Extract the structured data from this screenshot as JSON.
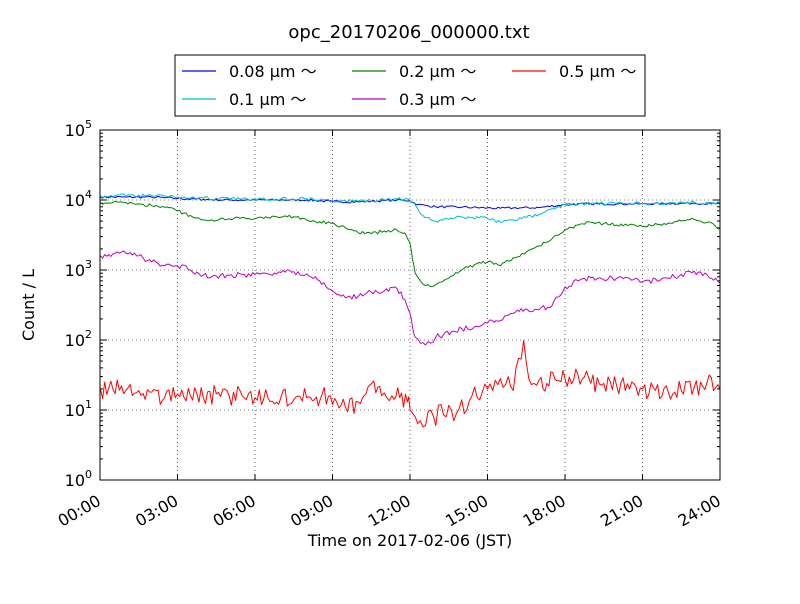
{
  "chart_data": {
    "type": "line",
    "title": "opc_20170206_000000.txt",
    "xlabel": "Time on 2017-02-06 (JST)",
    "ylabel": "Count / L",
    "yscale": "log",
    "ylim": [
      1,
      100000
    ],
    "xlim": [
      "00:00",
      "24:00"
    ],
    "x_ticks": [
      "00:00",
      "03:00",
      "06:00",
      "09:00",
      "12:00",
      "15:00",
      "18:00",
      "21:00",
      "24:00"
    ],
    "y_ticks": [
      {
        "base": "10",
        "exp": "0",
        "value": 1
      },
      {
        "base": "10",
        "exp": "1",
        "value": 10
      },
      {
        "base": "10",
        "exp": "2",
        "value": 100
      },
      {
        "base": "10",
        "exp": "3",
        "value": 1000
      },
      {
        "base": "10",
        "exp": "4",
        "value": 10000
      },
      {
        "base": "10",
        "exp": "5",
        "value": 100000
      }
    ],
    "grid": true,
    "legend_position": "top-center",
    "series": [
      {
        "name": "0.08 μm ～",
        "color": "#0000ff",
        "x": [
          0.02,
          1,
          2,
          2.5,
          3,
          4,
          5,
          6,
          7,
          8,
          9,
          10,
          11,
          11.5,
          12,
          12.3,
          12.7,
          13,
          14,
          15,
          15.5,
          16,
          17,
          18,
          19,
          20,
          21,
          22,
          23,
          24
        ],
        "y": [
          11000,
          11000,
          11000,
          10800,
          10500,
          10200,
          10000,
          10000,
          10000,
          10000,
          9500,
          9400,
          9800,
          10000,
          9800,
          8600,
          8300,
          8000,
          7900,
          7700,
          7600,
          7700,
          7800,
          8600,
          8800,
          8800,
          8800,
          8900,
          9000,
          8800
        ]
      },
      {
        "name": "0.1 μm ～",
        "color": "#00bfbf",
        "x": [
          0.02,
          1,
          2,
          2.5,
          3,
          4,
          5,
          6,
          7,
          8,
          9,
          10,
          11,
          11.5,
          12,
          12.3,
          12.5,
          12.8,
          13,
          14,
          15,
          15.5,
          16,
          17,
          18,
          19,
          20,
          21,
          22,
          23,
          24
        ],
        "y": [
          11500,
          11600,
          11600,
          11500,
          11000,
          10600,
          10400,
          10400,
          10400,
          10400,
          9700,
          9600,
          10000,
          10300,
          9900,
          7500,
          6000,
          5200,
          5000,
          5700,
          5500,
          4800,
          5200,
          6200,
          8600,
          8900,
          8900,
          8900,
          9000,
          9300,
          9000
        ]
      },
      {
        "name": "0.2 μm ～",
        "color": "#008000",
        "x": [
          0.02,
          0.5,
          1,
          1.5,
          2,
          2.5,
          3,
          3.5,
          4,
          4.5,
          5,
          6,
          7,
          7.5,
          8,
          8.5,
          9,
          9.5,
          10,
          10.5,
          11,
          11.5,
          11.8,
          12,
          12.1,
          12.2,
          12.4,
          12.6,
          12.8,
          13,
          13.3,
          13.6,
          14,
          14.5,
          15,
          15.5,
          16,
          16.5,
          17,
          17.5,
          18,
          18.5,
          19,
          20,
          21,
          22,
          23,
          23.5,
          24
        ],
        "y": [
          9200,
          9200,
          9200,
          8800,
          8300,
          7900,
          7000,
          6000,
          5200,
          5100,
          5400,
          5400,
          5700,
          5800,
          5200,
          4900,
          4700,
          4000,
          3400,
          3300,
          3600,
          3700,
          3400,
          2400,
          1400,
          900,
          700,
          600,
          580,
          620,
          700,
          820,
          1000,
          1200,
          1300,
          1150,
          1500,
          1800,
          2200,
          2800,
          3800,
          4400,
          4800,
          4400,
          4200,
          4700,
          5300,
          4800,
          3900
        ]
      },
      {
        "name": "0.3 μm ～",
        "color": "#bf00bf",
        "x": [
          0.02,
          0.5,
          1,
          1.5,
          2,
          2.5,
          3,
          3.5,
          4,
          4.5,
          5,
          6,
          7,
          7.5,
          8,
          8.5,
          9,
          9.5,
          10,
          10.5,
          11,
          11.5,
          11.8,
          12,
          12.1,
          12.2,
          12.4,
          12.6,
          12.8,
          13,
          13.3,
          13.6,
          14,
          14.5,
          15,
          15.5,
          16,
          16.3,
          16.6,
          17,
          17.5,
          18,
          18.5,
          19,
          20,
          21,
          22,
          23,
          23.5,
          24
        ],
        "y": [
          1600,
          1700,
          1750,
          1600,
          1300,
          1150,
          1150,
          1000,
          850,
          820,
          840,
          860,
          920,
          950,
          880,
          700,
          500,
          400,
          420,
          480,
          500,
          540,
          380,
          240,
          150,
          110,
          90,
          85,
          90,
          110,
          120,
          130,
          145,
          155,
          175,
          190,
          240,
          280,
          260,
          270,
          310,
          570,
          700,
          780,
          760,
          680,
          760,
          960,
          850,
          650
        ]
      },
      {
        "name": "0.5 μm ～",
        "color": "#ff0000",
        "x": [
          0.02,
          0.5,
          1,
          1.5,
          2,
          2.5,
          3,
          3.5,
          4,
          4.5,
          5,
          5.5,
          6,
          6.5,
          7,
          7.5,
          8,
          8.3,
          8.6,
          9,
          9.5,
          10,
          10.3,
          10.6,
          10.9,
          11.1,
          11.3,
          11.6,
          11.9,
          12,
          12.2,
          12.4,
          12.6,
          12.8,
          13,
          13.2,
          13.4,
          13.6,
          13.8,
          14,
          14.2,
          14.4,
          14.6,
          14.8,
          15,
          15.2,
          15.4,
          15.6,
          15.8,
          16,
          16.2,
          16.4,
          16.6,
          16.8,
          17,
          17.3,
          17.6,
          18,
          18.5,
          19,
          19.5,
          20,
          20.5,
          21,
          21.5,
          22,
          22.5,
          23,
          23.5,
          24
        ],
        "y": [
          20,
          20,
          19,
          19,
          18,
          15,
          17,
          16,
          15,
          17,
          16,
          16,
          15,
          15,
          15,
          14,
          15,
          14,
          17,
          12,
          11,
          13,
          17,
          26,
          16,
          15,
          16,
          15,
          13,
          10,
          8,
          7,
          6,
          10,
          6,
          12,
          8,
          10,
          9,
          14,
          10,
          16,
          15,
          18,
          20,
          19,
          23,
          21,
          30,
          19,
          55,
          98,
          28,
          24,
          27,
          24,
          28,
          28,
          32,
          24,
          24,
          22,
          20,
          20,
          19,
          18,
          19,
          21,
          25,
          20
        ]
      }
    ]
  }
}
